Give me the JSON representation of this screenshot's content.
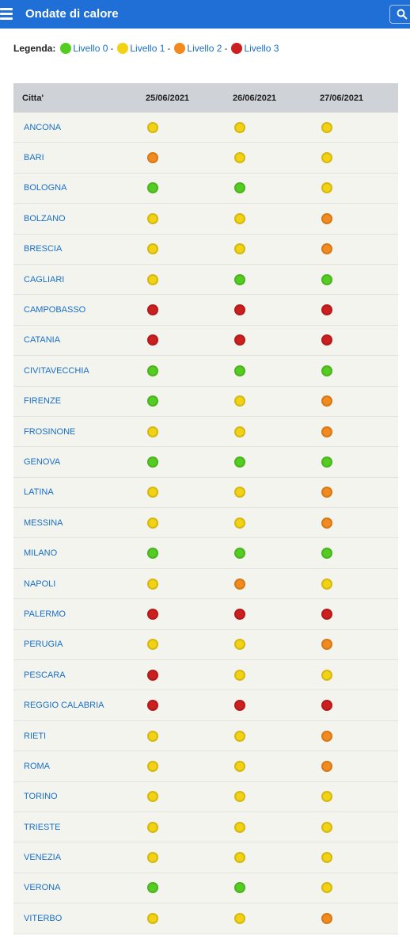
{
  "header": {
    "title": "Ondate di calore",
    "menu_icon": "hamburger-menu-icon",
    "search_icon": "search-icon"
  },
  "legend": {
    "title": "Legenda:",
    "levels": [
      {
        "label": "Livello 0",
        "color": "#55cc22"
      },
      {
        "label": "Livello 1",
        "color": "#f2d214"
      },
      {
        "label": "Livello 2",
        "color": "#f28a1e"
      },
      {
        "label": "Livello 3",
        "color": "#cc1f1f"
      }
    ],
    "separator": "-"
  },
  "table": {
    "columns": [
      "Citta'",
      "25/06/2021",
      "26/06/2021",
      "27/06/2021"
    ],
    "rows": [
      {
        "city": "ANCONA",
        "levels": [
          1,
          1,
          1
        ]
      },
      {
        "city": "BARI",
        "levels": [
          2,
          1,
          1
        ]
      },
      {
        "city": "BOLOGNA",
        "levels": [
          0,
          0,
          1
        ]
      },
      {
        "city": "BOLZANO",
        "levels": [
          1,
          1,
          2
        ]
      },
      {
        "city": "BRESCIA",
        "levels": [
          1,
          1,
          2
        ]
      },
      {
        "city": "CAGLIARI",
        "levels": [
          1,
          0,
          0
        ]
      },
      {
        "city": "CAMPOBASSO",
        "levels": [
          3,
          3,
          3
        ]
      },
      {
        "city": "CATANIA",
        "levels": [
          3,
          3,
          3
        ]
      },
      {
        "city": "CIVITAVECCHIA",
        "levels": [
          0,
          0,
          0
        ]
      },
      {
        "city": "FIRENZE",
        "levels": [
          0,
          1,
          2
        ]
      },
      {
        "city": "FROSINONE",
        "levels": [
          1,
          1,
          2
        ]
      },
      {
        "city": "GENOVA",
        "levels": [
          0,
          0,
          0
        ]
      },
      {
        "city": "LATINA",
        "levels": [
          1,
          1,
          2
        ]
      },
      {
        "city": "MESSINA",
        "levels": [
          1,
          1,
          2
        ]
      },
      {
        "city": "MILANO",
        "levels": [
          0,
          0,
          0
        ]
      },
      {
        "city": "NAPOLI",
        "levels": [
          1,
          2,
          1
        ]
      },
      {
        "city": "PALERMO",
        "levels": [
          3,
          3,
          3
        ]
      },
      {
        "city": "PERUGIA",
        "levels": [
          1,
          1,
          2
        ]
      },
      {
        "city": "PESCARA",
        "levels": [
          3,
          1,
          1
        ]
      },
      {
        "city": "REGGIO CALABRIA",
        "levels": [
          3,
          3,
          3
        ]
      },
      {
        "city": "RIETI",
        "levels": [
          1,
          1,
          2
        ]
      },
      {
        "city": "ROMA",
        "levels": [
          1,
          1,
          2
        ]
      },
      {
        "city": "TORINO",
        "levels": [
          1,
          1,
          1
        ]
      },
      {
        "city": "TRIESTE",
        "levels": [
          1,
          1,
          1
        ]
      },
      {
        "city": "VENEZIA",
        "levels": [
          1,
          1,
          1
        ]
      },
      {
        "city": "VERONA",
        "levels": [
          0,
          0,
          1
        ]
      },
      {
        "city": "VITERBO",
        "levels": [
          1,
          1,
          2
        ]
      }
    ]
  }
}
